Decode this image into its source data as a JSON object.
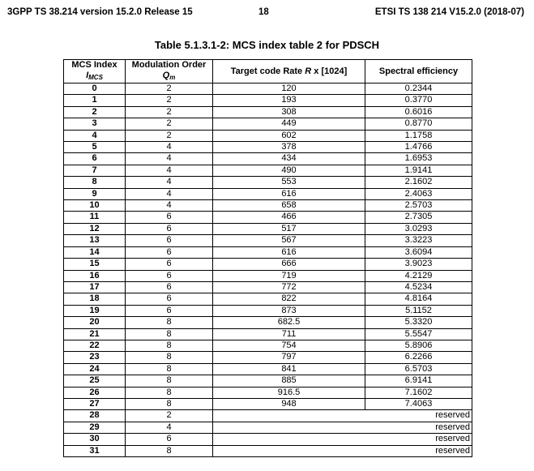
{
  "header": {
    "left": "3GPP TS 38.214 version 15.2.0 Release 15",
    "center": "18",
    "right": "ETSI TS 138 214 V15.2.0 (2018-07)"
  },
  "caption": "Table 5.1.3.1-2: MCS index table 2 for PDSCH",
  "columns": {
    "mcs_index": "MCS Index",
    "mcs_symbol": "I",
    "mcs_sub": "MCS",
    "mod_order": "Modulation Order",
    "mod_symbol": "Q",
    "mod_sub": "m",
    "rate_prefix": "Target code Rate",
    "rate_symbol": "R",
    "rate_suffix": "x [1024]",
    "spectral": "Spectral efficiency"
  },
  "rows": [
    {
      "i": "0",
      "q": "2",
      "r": "120",
      "s": "0.2344"
    },
    {
      "i": "1",
      "q": "2",
      "r": "193",
      "s": "0.3770"
    },
    {
      "i": "2",
      "q": "2",
      "r": "308",
      "s": "0.6016"
    },
    {
      "i": "3",
      "q": "2",
      "r": "449",
      "s": "0.8770"
    },
    {
      "i": "4",
      "q": "2",
      "r": "602",
      "s": "1.1758"
    },
    {
      "i": "5",
      "q": "4",
      "r": "378",
      "s": "1.4766"
    },
    {
      "i": "6",
      "q": "4",
      "r": "434",
      "s": "1.6953"
    },
    {
      "i": "7",
      "q": "4",
      "r": "490",
      "s": "1.9141"
    },
    {
      "i": "8",
      "q": "4",
      "r": "553",
      "s": "2.1602"
    },
    {
      "i": "9",
      "q": "4",
      "r": "616",
      "s": "2.4063"
    },
    {
      "i": "10",
      "q": "4",
      "r": "658",
      "s": "2.5703"
    },
    {
      "i": "11",
      "q": "6",
      "r": "466",
      "s": "2.7305"
    },
    {
      "i": "12",
      "q": "6",
      "r": "517",
      "s": "3.0293"
    },
    {
      "i": "13",
      "q": "6",
      "r": "567",
      "s": "3.3223"
    },
    {
      "i": "14",
      "q": "6",
      "r": "616",
      "s": "3.6094"
    },
    {
      "i": "15",
      "q": "6",
      "r": "666",
      "s": "3.9023"
    },
    {
      "i": "16",
      "q": "6",
      "r": "719",
      "s": "4.2129"
    },
    {
      "i": "17",
      "q": "6",
      "r": "772",
      "s": "4.5234"
    },
    {
      "i": "18",
      "q": "6",
      "r": "822",
      "s": "4.8164"
    },
    {
      "i": "19",
      "q": "6",
      "r": "873",
      "s": "5.1152"
    },
    {
      "i": "20",
      "q": "8",
      "r": "682.5",
      "s": "5.3320"
    },
    {
      "i": "21",
      "q": "8",
      "r": "711",
      "s": "5.5547"
    },
    {
      "i": "22",
      "q": "8",
      "r": "754",
      "s": "5.8906"
    },
    {
      "i": "23",
      "q": "8",
      "r": "797",
      "s": "6.2266"
    },
    {
      "i": "24",
      "q": "8",
      "r": "841",
      "s": "6.5703"
    },
    {
      "i": "25",
      "q": "8",
      "r": "885",
      "s": "6.9141"
    },
    {
      "i": "26",
      "q": "8",
      "r": "916.5",
      "s": "7.1602"
    },
    {
      "i": "27",
      "q": "8",
      "r": "948",
      "s": "7.4063"
    },
    {
      "i": "28",
      "q": "2",
      "reserved": "reserved"
    },
    {
      "i": "29",
      "q": "4",
      "reserved": "reserved"
    },
    {
      "i": "30",
      "q": "6",
      "reserved": "reserved"
    },
    {
      "i": "31",
      "q": "8",
      "reserved": "reserved"
    }
  ]
}
